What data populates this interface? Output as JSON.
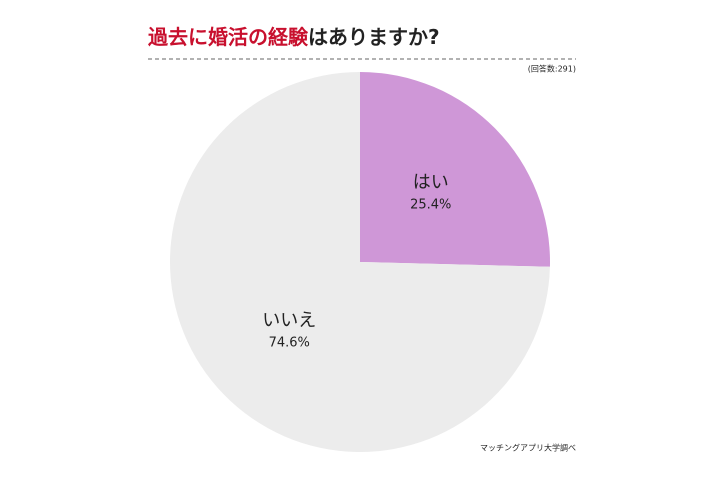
{
  "chart_data": {
    "type": "pie",
    "title": [
      {
        "text": "過去に婚活の経験",
        "color": "#c8102e"
      },
      {
        "text": "はありますか?",
        "color": "#222222"
      }
    ],
    "note": "(回答数:291)",
    "source": "マッチングアプリ大学調べ",
    "categories": [
      "はい",
      "いいえ"
    ],
    "values": [
      25.4,
      74.6
    ],
    "value_labels": [
      "25.4%",
      "74.6%"
    ],
    "colors": [
      "#cf97d7",
      "#ececec"
    ]
  }
}
